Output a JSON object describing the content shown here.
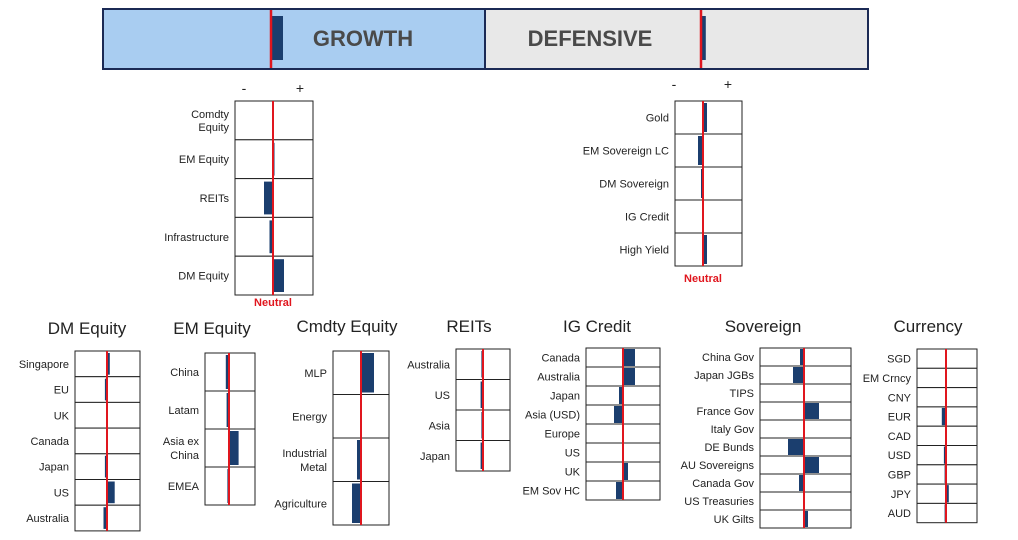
{
  "colors": {
    "navy": "#1b3e6e",
    "red": "#e0161e",
    "growth_bg": "#a9cdf1",
    "defensive_bg": "#e8e8e8",
    "border": "#1b2a55",
    "grid": "#222222"
  },
  "header": {
    "growth_label": "GROWTH",
    "defensive_label": "DEFENSIVE",
    "growth_value": 1,
    "defensive_value": 0.4
  },
  "signs": {
    "minus": "-",
    "plus": "+"
  },
  "neutral_label": "Neutral",
  "chart_data": {
    "type": "bar",
    "scale": "relative positioning vs neutral",
    "top_panels": [
      {
        "rows": [
          "Comdty\nEquity",
          "EM Equity",
          "REITs",
          "Infrastructure",
          "DM Equity"
        ],
        "values": [
          0,
          0.15,
          -0.9,
          -0.35,
          1.1
        ]
      },
      {
        "rows": [
          "Gold",
          "EM Sovereign LC",
          "DM Sovereign",
          "IG Credit",
          "High Yield"
        ],
        "values": [
          0.4,
          -0.5,
          -0.2,
          0,
          0.4
        ]
      }
    ],
    "bottom_panels": [
      {
        "title": "DM Equity",
        "rows": [
          "Singapore",
          "EU",
          "UK",
          "Canada",
          "Japan",
          "US",
          "Australia"
        ],
        "values": [
          0.4,
          -0.3,
          0,
          0,
          -0.3,
          1.1,
          -0.5
        ]
      },
      {
        "title": "EM Equity",
        "rows": [
          "China",
          "Latam",
          "Asia ex\nChina",
          "EMEA"
        ],
        "values": [
          -0.4,
          -0.3,
          1.2,
          -0.2
        ]
      },
      {
        "title": "Cmdty Equity",
        "rows": [
          "MLP",
          "Energy",
          "Industrial\nMetal",
          "Agriculture"
        ],
        "values": [
          1.3,
          0,
          -0.4,
          -0.9
        ]
      },
      {
        "title": "REITs",
        "rows": [
          "Australia",
          "US",
          "Asia",
          "Japan"
        ],
        "values": [
          -0.2,
          -0.3,
          -0.2,
          -0.3
        ]
      },
      {
        "title": "IG Credit",
        "rows": [
          "Canada",
          "Australia",
          "Japan",
          "Asia (USD)",
          "Europe",
          "US",
          "UK",
          "EM Sov HC"
        ],
        "values": [
          1.2,
          1.2,
          -0.4,
          -0.9,
          0,
          0,
          0.5,
          -0.7
        ]
      },
      {
        "title": "Sovereign",
        "rows": [
          "China Gov",
          "Japan JGBs",
          "TIPS",
          "France Gov",
          "Italy Gov",
          "DE Bunds",
          "AU Sovereigns",
          "Canada Gov",
          "US Treasuries",
          "UK Gilts"
        ],
        "values": [
          -0.4,
          -1.1,
          0,
          1.5,
          0,
          -1.6,
          1.5,
          -0.5,
          0,
          0.4
        ]
      },
      {
        "title": "Currency",
        "rows": [
          "SGD",
          "EM Crncy",
          "CNY",
          "EUR",
          "CAD",
          "USD",
          "GBP",
          "JPY",
          "AUD"
        ],
        "values": [
          0,
          0,
          0,
          -0.6,
          0,
          -0.3,
          -0.2,
          0.4,
          -0.2
        ]
      }
    ]
  }
}
